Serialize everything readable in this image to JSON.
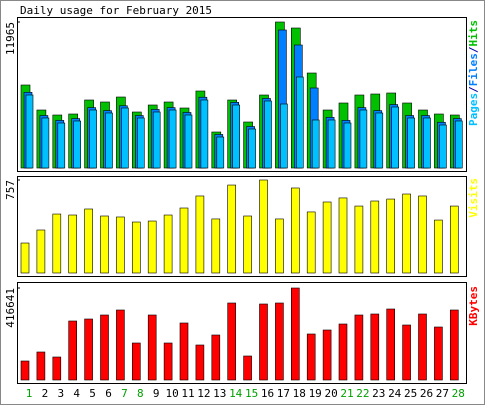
{
  "title": "Daily usage for February 2015",
  "categories": [
    "1",
    "2",
    "3",
    "4",
    "5",
    "6",
    "7",
    "8",
    "9",
    "10",
    "11",
    "12",
    "13",
    "14",
    "15",
    "16",
    "17",
    "18",
    "19",
    "20",
    "21",
    "22",
    "23",
    "24",
    "25",
    "26",
    "27",
    "28"
  ],
  "category_colors": [
    "#00a000",
    "#000000",
    "#000000",
    "#000000",
    "#000000",
    "#000000",
    "#00a000",
    "#00a000",
    "#000000",
    "#000000",
    "#000000",
    "#000000",
    "#000000",
    "#00a000",
    "#00a000",
    "#000000",
    "#000000",
    "#000000",
    "#000000",
    "#000000",
    "#00a000",
    "#00a000",
    "#000000",
    "#000000",
    "#000000",
    "#000000",
    "#000000",
    "#00a000"
  ],
  "chart_data": [
    {
      "type": "bar",
      "ylim": [
        0,
        11965
      ],
      "yticks": [
        11965
      ],
      "legend_separator": "/",
      "series": [
        {
          "name": "Pages",
          "color": "#00c0ff",
          "values": [
            5982,
            4098,
            3688,
            3852,
            4753,
            4507,
            4917,
            4098,
            4589,
            4753,
            4343,
            5573,
            2540,
            5163,
            3196,
            5491,
            5245,
            7457,
            3934,
            3934,
            3688,
            4753,
            4507,
            4999,
            4098,
            4098,
            3524,
            3852
          ]
        },
        {
          "name": "Files",
          "color": "#0080ff",
          "values": [
            6200,
            4300,
            3900,
            4050,
            4950,
            4700,
            5100,
            4300,
            4800,
            4950,
            4550,
            5800,
            2750,
            5380,
            3400,
            5700,
            11309,
            10080,
            6556,
            4150,
            3900,
            4950,
            4700,
            5200,
            4300,
            4300,
            3750,
            4050
          ]
        },
        {
          "name": "Hits",
          "color": "#00c000",
          "values": [
            6802,
            4753,
            4343,
            4425,
            5573,
            5409,
            5818,
            4589,
            5163,
            5409,
            4917,
            6310,
            2950,
            5573,
            3770,
            5982,
            11965,
            11473,
            7785,
            4753,
            5327,
            5982,
            6064,
            6146,
            5327,
            4753,
            4425,
            4343
          ]
        }
      ]
    },
    {
      "type": "bar",
      "ylim": [
        0,
        757
      ],
      "yticks": [
        757
      ],
      "series": [
        {
          "name": "Visits",
          "color": "#ffff00",
          "values": [
            244,
            350,
            480,
            472,
            521,
            464,
            456,
            415,
            423,
            472,
            529,
            627,
            440,
            716,
            464,
            757,
            440,
            692,
            497,
            578,
            611,
            545,
            586,
            602,
            643,
            627,
            431,
            545
          ]
        }
      ]
    },
    {
      "type": "bar",
      "ylim": [
        0,
        416641
      ],
      "yticks": [
        416641
      ],
      "series": [
        {
          "name": "KBytes",
          "color": "#ff0000",
          "values": [
            86050,
            126800,
            104160,
            267200,
            276250,
            294370,
            317010,
            167560,
            294370,
            167560,
            258140,
            158500,
            203790,
            348710,
            108690,
            344180,
            348710,
            416641,
            208320,
            226430,
            253600,
            294370,
            298900,
            321540,
            249080,
            298900,
            240020,
            317010
          ]
        }
      ]
    }
  ]
}
